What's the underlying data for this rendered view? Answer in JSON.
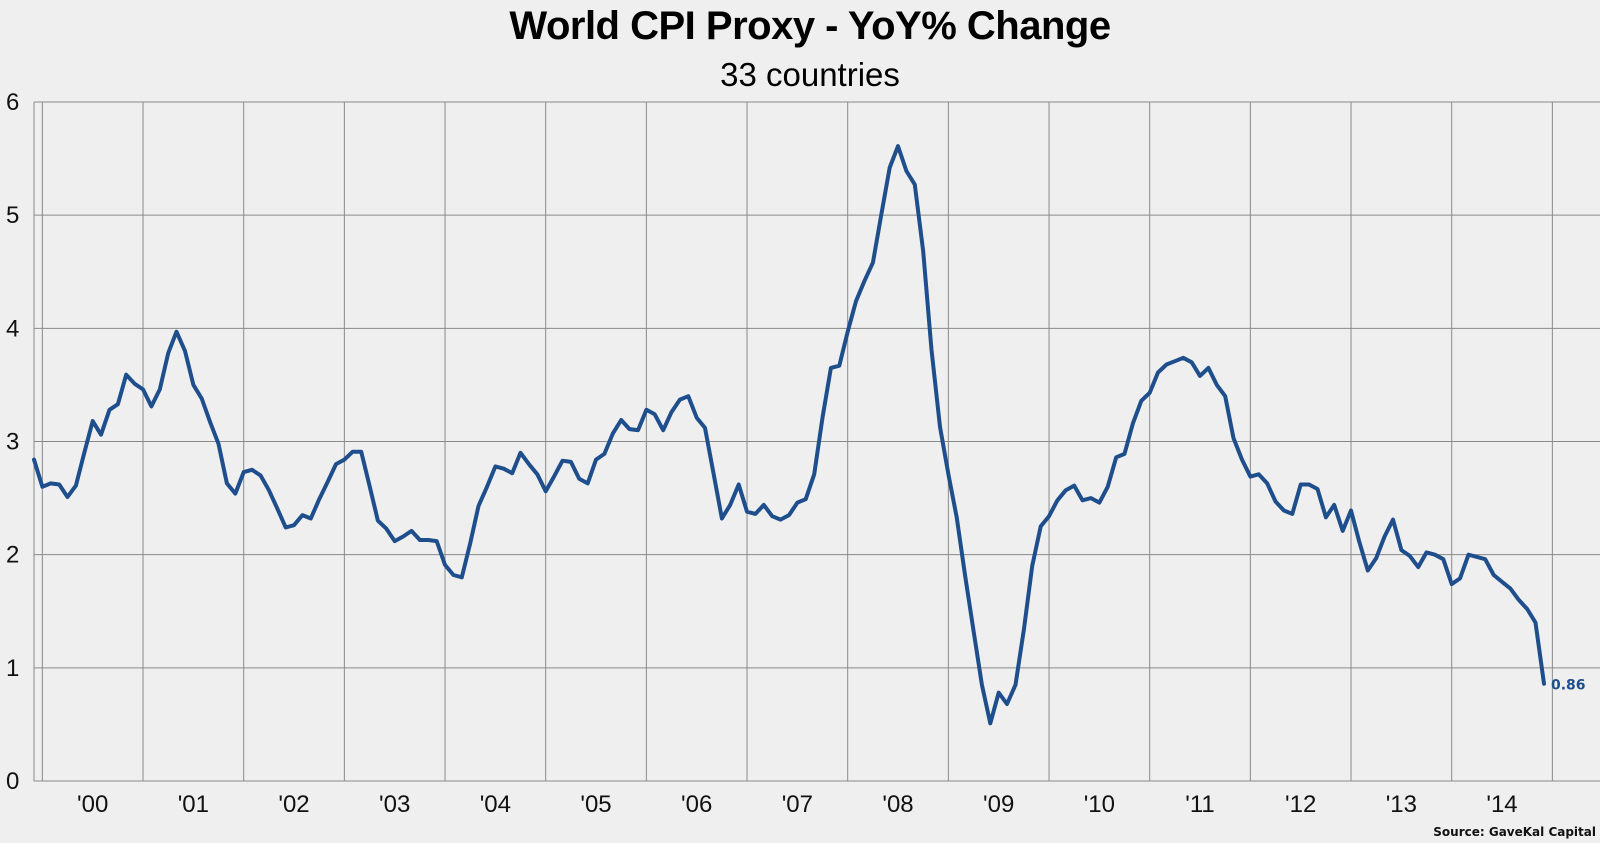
{
  "chart_data": {
    "type": "line",
    "title": "World CPI Proxy - YoY% Change",
    "subtitle": "33 countries",
    "xlabel": "",
    "ylabel": "",
    "ylim": [
      0,
      6
    ],
    "yticks": [
      "0",
      "1",
      "2",
      "3",
      "4",
      "5",
      "6"
    ],
    "x_tick_labels": [
      "'00",
      "'01",
      "'02",
      "'03",
      "'04",
      "'05",
      "'06",
      "'07",
      "'08",
      "'09",
      "'10",
      "'11",
      "'12",
      "'13",
      "'14"
    ],
    "x_range": [
      1999.917,
      2014.917
    ],
    "grid": true,
    "line_color": "#1f4e8c",
    "source": "Source: GaveKal Capital",
    "last_value_label": "0.86",
    "series": [
      {
        "points": [
          [
            1999.917,
            2.84
          ],
          [
            2000.0,
            2.6
          ],
          [
            2000.083,
            2.63
          ],
          [
            2000.167,
            2.62
          ],
          [
            2000.25,
            2.51
          ],
          [
            2000.333,
            2.61
          ],
          [
            2000.417,
            2.9
          ],
          [
            2000.5,
            3.18
          ],
          [
            2000.583,
            3.06
          ],
          [
            2000.667,
            3.28
          ],
          [
            2000.75,
            3.33
          ],
          [
            2000.833,
            3.59
          ],
          [
            2000.917,
            3.51
          ],
          [
            2001.0,
            3.46
          ],
          [
            2001.083,
            3.31
          ],
          [
            2001.167,
            3.46
          ],
          [
            2001.25,
            3.78
          ],
          [
            2001.333,
            3.97
          ],
          [
            2001.417,
            3.8
          ],
          [
            2001.5,
            3.5
          ],
          [
            2001.583,
            3.38
          ],
          [
            2001.667,
            3.17
          ],
          [
            2001.75,
            2.98
          ],
          [
            2001.833,
            2.63
          ],
          [
            2001.917,
            2.54
          ],
          [
            2002.0,
            2.73
          ],
          [
            2002.083,
            2.75
          ],
          [
            2002.167,
            2.7
          ],
          [
            2002.25,
            2.57
          ],
          [
            2002.333,
            2.41
          ],
          [
            2002.417,
            2.24
          ],
          [
            2002.5,
            2.26
          ],
          [
            2002.583,
            2.35
          ],
          [
            2002.667,
            2.32
          ],
          [
            2002.75,
            2.49
          ],
          [
            2002.833,
            2.64
          ],
          [
            2002.917,
            2.8
          ],
          [
            2003.0,
            2.84
          ],
          [
            2003.083,
            2.91
          ],
          [
            2003.167,
            2.91
          ],
          [
            2003.25,
            2.61
          ],
          [
            2003.333,
            2.3
          ],
          [
            2003.417,
            2.23
          ],
          [
            2003.5,
            2.12
          ],
          [
            2003.583,
            2.16
          ],
          [
            2003.667,
            2.21
          ],
          [
            2003.75,
            2.13
          ],
          [
            2003.833,
            2.13
          ],
          [
            2003.917,
            2.12
          ],
          [
            2004.0,
            1.91
          ],
          [
            2004.083,
            1.82
          ],
          [
            2004.167,
            1.8
          ],
          [
            2004.25,
            2.1
          ],
          [
            2004.333,
            2.43
          ],
          [
            2004.417,
            2.6
          ],
          [
            2004.5,
            2.78
          ],
          [
            2004.583,
            2.76
          ],
          [
            2004.667,
            2.72
          ],
          [
            2004.75,
            2.9
          ],
          [
            2004.833,
            2.8
          ],
          [
            2004.917,
            2.71
          ],
          [
            2005.0,
            2.56
          ],
          [
            2005.083,
            2.69
          ],
          [
            2005.167,
            2.83
          ],
          [
            2005.25,
            2.82
          ],
          [
            2005.333,
            2.67
          ],
          [
            2005.417,
            2.63
          ],
          [
            2005.5,
            2.84
          ],
          [
            2005.583,
            2.89
          ],
          [
            2005.667,
            3.07
          ],
          [
            2005.75,
            3.19
          ],
          [
            2005.833,
            3.11
          ],
          [
            2005.917,
            3.1
          ],
          [
            2006.0,
            3.28
          ],
          [
            2006.083,
            3.24
          ],
          [
            2006.167,
            3.1
          ],
          [
            2006.25,
            3.26
          ],
          [
            2006.333,
            3.37
          ],
          [
            2006.417,
            3.4
          ],
          [
            2006.5,
            3.21
          ],
          [
            2006.583,
            3.12
          ],
          [
            2006.667,
            2.72
          ],
          [
            2006.75,
            2.32
          ],
          [
            2006.833,
            2.44
          ],
          [
            2006.917,
            2.62
          ],
          [
            2007.0,
            2.38
          ],
          [
            2007.083,
            2.36
          ],
          [
            2007.167,
            2.44
          ],
          [
            2007.25,
            2.34
          ],
          [
            2007.333,
            2.31
          ],
          [
            2007.417,
            2.35
          ],
          [
            2007.5,
            2.46
          ],
          [
            2007.583,
            2.49
          ],
          [
            2007.667,
            2.71
          ],
          [
            2007.75,
            3.21
          ],
          [
            2007.833,
            3.65
          ],
          [
            2007.917,
            3.67
          ],
          [
            2008.0,
            3.97
          ],
          [
            2008.083,
            4.24
          ],
          [
            2008.167,
            4.42
          ],
          [
            2008.25,
            4.58
          ],
          [
            2008.333,
            5.0
          ],
          [
            2008.417,
            5.42
          ],
          [
            2008.5,
            5.61
          ],
          [
            2008.583,
            5.39
          ],
          [
            2008.667,
            5.27
          ],
          [
            2008.75,
            4.68
          ],
          [
            2008.833,
            3.81
          ],
          [
            2008.917,
            3.13
          ],
          [
            2009.0,
            2.71
          ],
          [
            2009.083,
            2.33
          ],
          [
            2009.167,
            1.81
          ],
          [
            2009.25,
            1.33
          ],
          [
            2009.333,
            0.85
          ],
          [
            2009.417,
            0.51
          ],
          [
            2009.5,
            0.78
          ],
          [
            2009.583,
            0.68
          ],
          [
            2009.667,
            0.85
          ],
          [
            2009.75,
            1.34
          ],
          [
            2009.833,
            1.9
          ],
          [
            2009.917,
            2.25
          ],
          [
            2010.0,
            2.34
          ],
          [
            2010.083,
            2.48
          ],
          [
            2010.167,
            2.57
          ],
          [
            2010.25,
            2.61
          ],
          [
            2010.333,
            2.48
          ],
          [
            2010.417,
            2.5
          ],
          [
            2010.5,
            2.46
          ],
          [
            2010.583,
            2.6
          ],
          [
            2010.667,
            2.86
          ],
          [
            2010.75,
            2.89
          ],
          [
            2010.833,
            3.16
          ],
          [
            2010.917,
            3.36
          ],
          [
            2011.0,
            3.43
          ],
          [
            2011.083,
            3.61
          ],
          [
            2011.167,
            3.68
          ],
          [
            2011.25,
            3.71
          ],
          [
            2011.333,
            3.74
          ],
          [
            2011.417,
            3.7
          ],
          [
            2011.5,
            3.58
          ],
          [
            2011.583,
            3.65
          ],
          [
            2011.667,
            3.5
          ],
          [
            2011.75,
            3.4
          ],
          [
            2011.833,
            3.03
          ],
          [
            2011.917,
            2.84
          ],
          [
            2012.0,
            2.69
          ],
          [
            2012.083,
            2.71
          ],
          [
            2012.167,
            2.63
          ],
          [
            2012.25,
            2.47
          ],
          [
            2012.333,
            2.39
          ],
          [
            2012.417,
            2.36
          ],
          [
            2012.5,
            2.62
          ],
          [
            2012.583,
            2.62
          ],
          [
            2012.667,
            2.58
          ],
          [
            2012.75,
            2.33
          ],
          [
            2012.833,
            2.44
          ],
          [
            2012.917,
            2.21
          ],
          [
            2013.0,
            2.39
          ],
          [
            2013.083,
            2.11
          ],
          [
            2013.167,
            1.86
          ],
          [
            2013.25,
            1.97
          ],
          [
            2013.333,
            2.16
          ],
          [
            2013.417,
            2.31
          ],
          [
            2013.5,
            2.04
          ],
          [
            2013.583,
            1.99
          ],
          [
            2013.667,
            1.89
          ],
          [
            2013.75,
            2.02
          ],
          [
            2013.833,
            2.0
          ],
          [
            2013.917,
            1.96
          ],
          [
            2014.0,
            1.74
          ],
          [
            2014.083,
            1.79
          ],
          [
            2014.167,
            2.0
          ],
          [
            2014.25,
            1.98
          ],
          [
            2014.333,
            1.96
          ],
          [
            2014.417,
            1.82
          ],
          [
            2014.5,
            1.76
          ],
          [
            2014.583,
            1.7
          ],
          [
            2014.667,
            1.6
          ],
          [
            2014.75,
            1.52
          ],
          [
            2014.833,
            1.4
          ],
          [
            2014.917,
            0.86
          ]
        ]
      }
    ]
  }
}
